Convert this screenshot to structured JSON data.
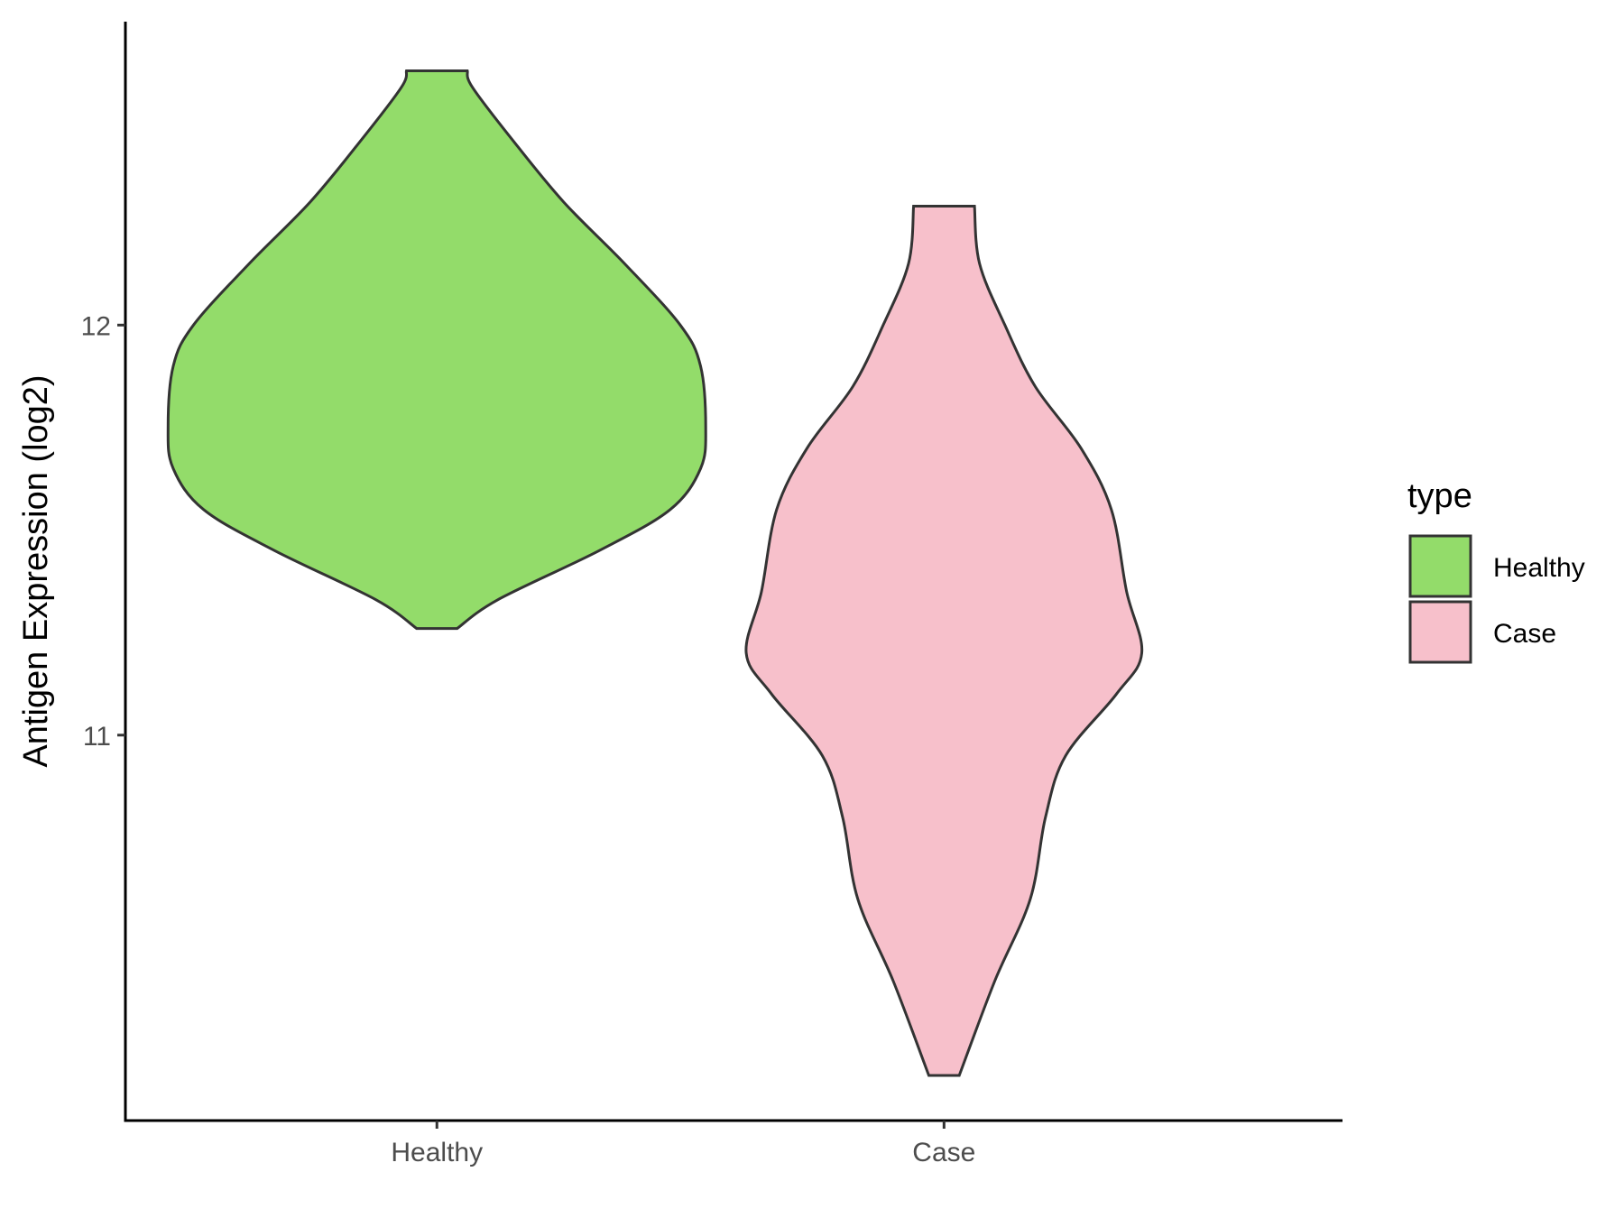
{
  "chart_data": {
    "type": "violin",
    "ylabel": "Antigen Expression (log2)",
    "xlabel": "",
    "categories": [
      "Healthy",
      "Case"
    ],
    "ylim": [
      10.06,
      12.74
    ],
    "yticks": [
      11,
      12
    ],
    "grid": false,
    "legend": {
      "title": "type",
      "position": "right",
      "entries": [
        {
          "label": "Healthy",
          "color": "#93dc6a"
        },
        {
          "label": "Case",
          "color": "#f7c0cb"
        }
      ]
    },
    "series": [
      {
        "category": "Healthy",
        "color": "#93dc6a",
        "min": 11.26,
        "max": 12.62,
        "profile": [
          {
            "y": 11.26,
            "halfwidth": 0.04
          },
          {
            "y": 11.33,
            "halfwidth": 0.12
          },
          {
            "y": 11.45,
            "halfwidth": 0.32
          },
          {
            "y": 11.55,
            "halfwidth": 0.46
          },
          {
            "y": 11.65,
            "halfwidth": 0.52
          },
          {
            "y": 11.75,
            "halfwidth": 0.53
          },
          {
            "y": 11.9,
            "halfwidth": 0.52
          },
          {
            "y": 12.0,
            "halfwidth": 0.48
          },
          {
            "y": 12.15,
            "halfwidth": 0.37
          },
          {
            "y": 12.3,
            "halfwidth": 0.25
          },
          {
            "y": 12.45,
            "halfwidth": 0.15
          },
          {
            "y": 12.58,
            "halfwidth": 0.07
          },
          {
            "y": 12.62,
            "halfwidth": 0.06
          }
        ]
      },
      {
        "category": "Case",
        "color": "#f7c0cb",
        "min": 10.17,
        "max": 12.29,
        "profile": [
          {
            "y": 10.17,
            "halfwidth": 0.03
          },
          {
            "y": 10.4,
            "halfwidth": 0.1
          },
          {
            "y": 10.6,
            "halfwidth": 0.17
          },
          {
            "y": 10.8,
            "halfwidth": 0.2
          },
          {
            "y": 10.95,
            "halfwidth": 0.24
          },
          {
            "y": 11.1,
            "halfwidth": 0.34
          },
          {
            "y": 11.2,
            "halfwidth": 0.39
          },
          {
            "y": 11.35,
            "halfwidth": 0.36
          },
          {
            "y": 11.55,
            "halfwidth": 0.33
          },
          {
            "y": 11.7,
            "halfwidth": 0.27
          },
          {
            "y": 11.85,
            "halfwidth": 0.18
          },
          {
            "y": 12.0,
            "halfwidth": 0.12
          },
          {
            "y": 12.15,
            "halfwidth": 0.07
          },
          {
            "y": 12.29,
            "halfwidth": 0.06
          }
        ]
      }
    ]
  }
}
